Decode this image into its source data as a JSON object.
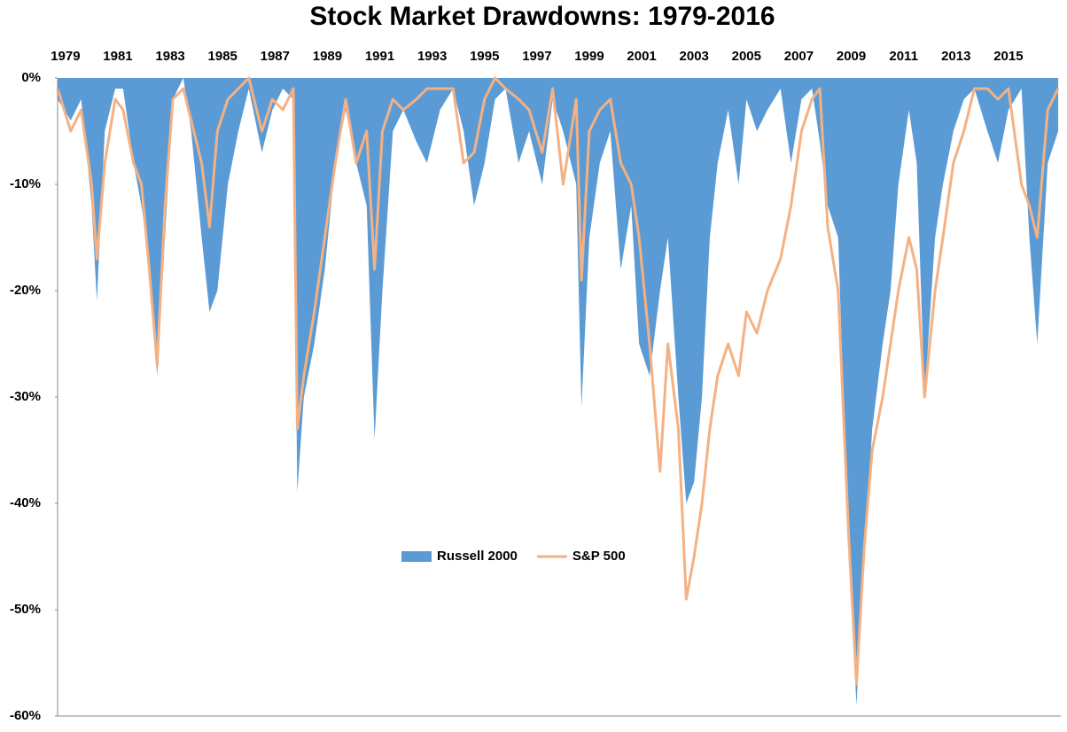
{
  "chart_data": {
    "type": "area-line",
    "title": "Stock Market Drawdowns: 1979-2016",
    "x": [
      1978.7,
      1979.2,
      1979.6,
      1980.0,
      1980.2,
      1980.5,
      1980.9,
      1981.2,
      1981.6,
      1981.9,
      1982.2,
      1982.5,
      1982.8,
      1983.1,
      1983.5,
      1983.8,
      1984.2,
      1984.5,
      1984.8,
      1985.2,
      1985.6,
      1986.0,
      1986.5,
      1986.9,
      1987.3,
      1987.7,
      1987.85,
      1988.1,
      1988.5,
      1988.9,
      1989.3,
      1989.7,
      1990.1,
      1990.5,
      1990.8,
      1991.1,
      1991.5,
      1991.9,
      1992.4,
      1992.8,
      1993.3,
      1993.8,
      1994.2,
      1994.6,
      1995.0,
      1995.4,
      1995.8,
      1996.3,
      1996.7,
      1997.2,
      1997.6,
      1998.0,
      1998.5,
      1998.7,
      1999.0,
      1999.4,
      1999.8,
      2000.2,
      2000.6,
      2000.9,
      2001.3,
      2001.7,
      2002.0,
      2002.4,
      2002.7,
      2003.0,
      2003.3,
      2003.6,
      2003.9,
      2004.3,
      2004.7,
      2005.0,
      2005.4,
      2005.8,
      2006.3,
      2006.7,
      2007.1,
      2007.5,
      2007.8,
      2008.1,
      2008.5,
      2008.9,
      2009.2,
      2009.5,
      2009.8,
      2010.2,
      2010.5,
      2010.8,
      2011.2,
      2011.5,
      2011.8,
      2012.2,
      2012.5,
      2012.9,
      2013.3,
      2013.7,
      2014.2,
      2014.6,
      2015.0,
      2015.5,
      2015.8,
      2016.1,
      2016.5,
      2016.9
    ],
    "series": [
      {
        "name": "Russell 2000",
        "color": "#5b9bd5",
        "kind": "area",
        "values": [
          -2,
          -4,
          -2,
          -12,
          -21,
          -5,
          -1,
          -1,
          -8,
          -12,
          -17,
          -28,
          -15,
          -2,
          0,
          -5,
          -15,
          -22,
          -20,
          -10,
          -5,
          -1,
          -7,
          -3,
          -1,
          -2,
          -39,
          -30,
          -25,
          -18,
          -8,
          -3,
          -8,
          -12,
          -34,
          -20,
          -5,
          -3,
          -6,
          -8,
          -3,
          -1,
          -5,
          -12,
          -8,
          -2,
          -1,
          -8,
          -5,
          -10,
          -2,
          -5,
          -10,
          -31,
          -15,
          -8,
          -5,
          -18,
          -12,
          -25,
          -28,
          -20,
          -15,
          -30,
          -40,
          -38,
          -30,
          -15,
          -8,
          -3,
          -10,
          -2,
          -5,
          -3,
          -1,
          -8,
          -2,
          -1,
          -6,
          -12,
          -15,
          -45,
          -59,
          -45,
          -33,
          -25,
          -20,
          -10,
          -3,
          -8,
          -30,
          -15,
          -10,
          -5,
          -2,
          -1,
          -5,
          -8,
          -3,
          -1,
          -15,
          -25,
          -8,
          -5
        ]
      },
      {
        "name": "S&P 500",
        "color": "#f4b183",
        "kind": "line",
        "values": [
          -1,
          -5,
          -3,
          -10,
          -17,
          -8,
          -2,
          -3,
          -8,
          -10,
          -18,
          -27,
          -12,
          -2,
          -1,
          -4,
          -8,
          -14,
          -5,
          -2,
          -1,
          0,
          -5,
          -2,
          -3,
          -1,
          -33,
          -28,
          -22,
          -15,
          -8,
          -2,
          -8,
          -5,
          -18,
          -5,
          -2,
          -3,
          -2,
          -1,
          -1,
          -1,
          -8,
          -7,
          -2,
          0,
          -1,
          -2,
          -3,
          -7,
          -1,
          -10,
          -2,
          -19,
          -5,
          -3,
          -2,
          -8,
          -10,
          -15,
          -25,
          -37,
          -25,
          -33,
          -49,
          -45,
          -40,
          -33,
          -28,
          -25,
          -28,
          -22,
          -24,
          -20,
          -17,
          -12,
          -5,
          -2,
          -1,
          -14,
          -20,
          -43,
          -57,
          -44,
          -35,
          -30,
          -25,
          -20,
          -15,
          -18,
          -30,
          -20,
          -15,
          -8,
          -5,
          -1,
          -1,
          -2,
          -1,
          -10,
          -12,
          -15,
          -3,
          -1
        ]
      }
    ],
    "xlim": [
      1978.7,
      2017.0
    ],
    "xticks": [
      1979,
      1981,
      1983,
      1985,
      1987,
      1989,
      1991,
      1993,
      1995,
      1997,
      1999,
      2001,
      2003,
      2005,
      2007,
      2009,
      2011,
      2013,
      2015
    ],
    "ylim": [
      -60,
      0
    ],
    "yticks": [
      {
        "value": 0,
        "label": "0%"
      },
      {
        "value": -10,
        "label": "-10%"
      },
      {
        "value": -20,
        "label": "-20%"
      },
      {
        "value": -30,
        "label": "-30%"
      },
      {
        "value": -40,
        "label": "-40%"
      },
      {
        "value": -50,
        "label": "-50%"
      },
      {
        "value": -60,
        "label": "-60%"
      }
    ],
    "legend": "center",
    "grid": false
  }
}
